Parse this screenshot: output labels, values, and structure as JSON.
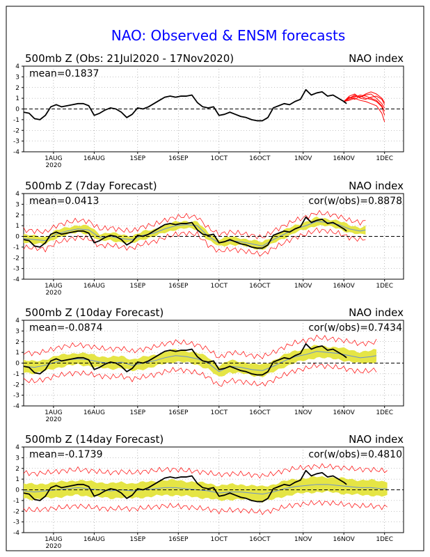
{
  "title": "NAO: Observed & ENSM forecasts",
  "colors": {
    "title": "#0000ff",
    "observed": "#000000",
    "forecast_members": "#ff0000",
    "spread_band": "#e5e545",
    "ensemble_mean": "#6a8fd0",
    "zero_line": "#000000",
    "grid": "#888888"
  },
  "x_axis": {
    "labels": [
      {
        "text": "1AUG",
        "day": 11
      },
      {
        "text": "16AUG",
        "day": 26
      },
      {
        "text": "1SEP",
        "day": 42
      },
      {
        "text": "16SEP",
        "day": 57
      },
      {
        "text": "1OCT",
        "day": 72
      },
      {
        "text": "16OCT",
        "day": 87
      },
      {
        "text": "1NOV",
        "day": 103
      },
      {
        "text": "16NOV",
        "day": 118
      },
      {
        "text": "1DEC",
        "day": 133
      }
    ],
    "year_label": "2020",
    "range": [
      0,
      140
    ]
  },
  "chart_data": [
    {
      "type": "line",
      "title": "500mb Z (Obs: 21Jul2020 - 17Nov2020)",
      "right_label": "NAO index",
      "mean_label": "mean=0.1837",
      "cor_label": "",
      "ylim": [
        -4,
        4
      ],
      "yticks": [
        4,
        3,
        2,
        1,
        0,
        -1,
        -2,
        -3,
        -4
      ],
      "observed": {
        "days": [
          0,
          2,
          4,
          6,
          8,
          10,
          12,
          14,
          16,
          18,
          20,
          22,
          24,
          26,
          28,
          30,
          32,
          34,
          36,
          38,
          40,
          42,
          44,
          46,
          48,
          50,
          52,
          54,
          56,
          58,
          60,
          62,
          64,
          66,
          68,
          70,
          72,
          74,
          76,
          78,
          80,
          82,
          84,
          86,
          88,
          90,
          92,
          94,
          96,
          98,
          100,
          102,
          104,
          106,
          108,
          110,
          112,
          114,
          116,
          118,
          119
        ],
        "values": [
          -0.3,
          -0.4,
          -0.9,
          -1.0,
          -0.6,
          0.2,
          0.4,
          0.2,
          0.3,
          0.4,
          0.5,
          0.5,
          0.3,
          -0.6,
          -0.4,
          -0.1,
          0.1,
          0.0,
          -0.3,
          -0.8,
          -0.5,
          0.1,
          0.0,
          0.2,
          0.5,
          0.8,
          1.1,
          1.2,
          1.1,
          1.2,
          1.2,
          1.3,
          0.6,
          0.2,
          0.1,
          0.2,
          -0.6,
          -0.5,
          -0.3,
          -0.5,
          -0.7,
          -0.8,
          -1.0,
          -1.1,
          -1.1,
          -0.8,
          0.1,
          0.3,
          0.5,
          0.4,
          0.7,
          0.9,
          1.8,
          1.3,
          1.5,
          1.6,
          1.2,
          1.3,
          1.0,
          0.7,
          0.5
        ]
      },
      "forecast_members": [
        {
          "days": [
            118,
            120,
            122,
            124,
            126,
            128,
            130,
            132,
            133
          ],
          "values": [
            0.7,
            1.0,
            1.3,
            1.1,
            1.4,
            1.6,
            1.4,
            1.0,
            0.6
          ]
        },
        {
          "days": [
            118,
            120,
            122,
            124,
            126,
            128,
            130,
            132,
            133
          ],
          "values": [
            0.7,
            0.9,
            1.1,
            1.3,
            1.2,
            1.0,
            0.8,
            0.3,
            -0.2
          ]
        },
        {
          "days": [
            118,
            120,
            122,
            124,
            126,
            128,
            130,
            132,
            133
          ],
          "values": [
            0.7,
            1.2,
            1.4,
            1.0,
            0.9,
            1.1,
            1.2,
            0.9,
            0.4
          ]
        },
        {
          "days": [
            118,
            120,
            122,
            124,
            126,
            128,
            130,
            132,
            133
          ],
          "values": [
            0.7,
            0.8,
            1.0,
            0.8,
            0.7,
            0.5,
            0.3,
            -0.4,
            -1.2
          ]
        },
        {
          "days": [
            118,
            120,
            122,
            124,
            126,
            128,
            130,
            132,
            133
          ],
          "values": [
            0.7,
            1.0,
            1.2,
            1.1,
            1.3,
            1.4,
            1.0,
            0.5,
            0.1
          ]
        },
        {
          "days": [
            118,
            120,
            122,
            124,
            126,
            128,
            130,
            132,
            133
          ],
          "values": [
            0.7,
            1.1,
            0.9,
            1.2,
            1.0,
            0.9,
            0.7,
            0.2,
            -0.6
          ]
        }
      ]
    },
    {
      "type": "line",
      "title": "500mb Z (7day Forecast)",
      "right_label": "NAO index",
      "mean_label": "mean=0.0413",
      "cor_label": "cor(w/obs)=0.8878",
      "ylim": [
        -4,
        4
      ],
      "yticks": [
        4,
        3,
        2,
        1,
        0,
        -1,
        -2,
        -3,
        -4
      ],
      "observed": {
        "days": [
          0,
          2,
          4,
          6,
          8,
          10,
          12,
          14,
          16,
          18,
          20,
          22,
          24,
          26,
          28,
          30,
          32,
          34,
          36,
          38,
          40,
          42,
          44,
          46,
          48,
          50,
          52,
          54,
          56,
          58,
          60,
          62,
          64,
          66,
          68,
          70,
          72,
          74,
          76,
          78,
          80,
          82,
          84,
          86,
          88,
          90,
          92,
          94,
          96,
          98,
          100,
          102,
          104,
          106,
          108,
          110,
          112,
          114,
          116,
          118,
          119
        ],
        "values": [
          -0.3,
          -0.4,
          -0.9,
          -1.0,
          -0.6,
          0.2,
          0.4,
          0.2,
          0.3,
          0.4,
          0.5,
          0.5,
          0.3,
          -0.6,
          -0.4,
          -0.1,
          0.1,
          0.0,
          -0.3,
          -0.8,
          -0.5,
          0.1,
          0.0,
          0.2,
          0.5,
          0.8,
          1.1,
          1.2,
          1.1,
          1.2,
          1.2,
          1.3,
          0.6,
          0.2,
          0.1,
          0.2,
          -0.6,
          -0.5,
          -0.3,
          -0.5,
          -0.7,
          -0.8,
          -1.0,
          -1.1,
          -1.1,
          -0.8,
          0.1,
          0.3,
          0.5,
          0.4,
          0.7,
          0.9,
          1.8,
          1.3,
          1.5,
          1.6,
          1.2,
          1.3,
          1.0,
          0.7,
          0.5
        ]
      },
      "ensemble_mean": {
        "days": [
          0,
          4,
          8,
          12,
          16,
          20,
          24,
          28,
          32,
          36,
          40,
          44,
          48,
          52,
          56,
          60,
          64,
          68,
          72,
          76,
          80,
          84,
          88,
          92,
          96,
          100,
          104,
          108,
          112,
          116,
          120,
          124,
          126
        ],
        "values": [
          -0.2,
          -0.3,
          -0.4,
          0.2,
          0.5,
          0.7,
          0.6,
          -0.1,
          0.0,
          -0.2,
          -0.3,
          0.1,
          0.3,
          0.7,
          1.0,
          1.1,
          1.0,
          0.0,
          -0.6,
          -0.4,
          -0.5,
          -0.7,
          -0.9,
          -0.3,
          0.2,
          0.7,
          1.0,
          1.4,
          1.3,
          1.1,
          0.7,
          0.5,
          0.6
        ]
      },
      "spread": 0.35,
      "member_spread": 0.8
    },
    {
      "type": "line",
      "title": "500mb Z (10day Forecast)",
      "right_label": "NAO index",
      "mean_label": "mean=-0.0874",
      "cor_label": "cor(w/obs)=0.7434",
      "ylim": [
        -4,
        4
      ],
      "yticks": [
        4,
        3,
        2,
        1,
        0,
        -1,
        -2,
        -3,
        -4
      ],
      "observed": {
        "days": [
          0,
          2,
          4,
          6,
          8,
          10,
          12,
          14,
          16,
          18,
          20,
          22,
          24,
          26,
          28,
          30,
          32,
          34,
          36,
          38,
          40,
          42,
          44,
          46,
          48,
          50,
          52,
          54,
          56,
          58,
          60,
          62,
          64,
          66,
          68,
          70,
          72,
          74,
          76,
          78,
          80,
          82,
          84,
          86,
          88,
          90,
          92,
          94,
          96,
          98,
          100,
          102,
          104,
          106,
          108,
          110,
          112,
          114,
          116,
          118,
          119
        ],
        "values": [
          -0.3,
          -0.4,
          -0.9,
          -1.0,
          -0.6,
          0.2,
          0.4,
          0.2,
          0.3,
          0.4,
          0.5,
          0.5,
          0.3,
          -0.6,
          -0.4,
          -0.1,
          0.1,
          0.0,
          -0.3,
          -0.8,
          -0.5,
          0.1,
          0.0,
          0.2,
          0.5,
          0.8,
          1.1,
          1.2,
          1.1,
          1.2,
          1.2,
          1.3,
          0.6,
          0.2,
          0.1,
          0.2,
          -0.6,
          -0.5,
          -0.3,
          -0.5,
          -0.7,
          -0.8,
          -1.0,
          -1.1,
          -1.1,
          -0.8,
          0.1,
          0.3,
          0.5,
          0.4,
          0.7,
          0.9,
          1.8,
          1.3,
          1.5,
          1.6,
          1.2,
          1.3,
          1.0,
          0.7,
          0.5
        ]
      },
      "ensemble_mean": {
        "days": [
          0,
          4,
          8,
          12,
          16,
          20,
          24,
          28,
          32,
          36,
          40,
          44,
          48,
          52,
          56,
          60,
          64,
          68,
          72,
          76,
          80,
          84,
          88,
          92,
          96,
          100,
          104,
          108,
          112,
          116,
          120,
          124,
          128,
          130
        ],
        "values": [
          -0.3,
          -0.4,
          -0.2,
          0.1,
          0.3,
          0.4,
          0.3,
          0.1,
          0.0,
          0.1,
          -0.2,
          0.0,
          0.2,
          0.5,
          0.7,
          0.6,
          0.4,
          0.0,
          -0.8,
          -0.3,
          -0.4,
          -0.6,
          -0.7,
          -0.3,
          0.2,
          0.6,
          0.8,
          1.1,
          1.0,
          0.9,
          0.7,
          0.5,
          0.6,
          0.7
        ]
      },
      "spread": 0.55,
      "member_spread": 1.3
    },
    {
      "type": "line",
      "title": "500mb Z (14day Forecast)",
      "right_label": "NAO index",
      "mean_label": "mean=-0.1739",
      "cor_label": "cor(w/obs)=0.4810",
      "ylim": [
        -4,
        4
      ],
      "yticks": [
        4,
        3,
        2,
        1,
        0,
        -1,
        -2,
        -3,
        -4
      ],
      "observed": {
        "days": [
          0,
          2,
          4,
          6,
          8,
          10,
          12,
          14,
          16,
          18,
          20,
          22,
          24,
          26,
          28,
          30,
          32,
          34,
          36,
          38,
          40,
          42,
          44,
          46,
          48,
          50,
          52,
          54,
          56,
          58,
          60,
          62,
          64,
          66,
          68,
          70,
          72,
          74,
          76,
          78,
          80,
          82,
          84,
          86,
          88,
          90,
          92,
          94,
          96,
          98,
          100,
          102,
          104,
          106,
          108,
          110,
          112,
          114,
          116,
          118,
          119
        ],
        "values": [
          -0.3,
          -0.4,
          -0.9,
          -1.0,
          -0.6,
          0.2,
          0.4,
          0.2,
          0.3,
          0.4,
          0.5,
          0.5,
          0.3,
          -0.6,
          -0.4,
          -0.1,
          0.1,
          0.0,
          -0.3,
          -0.8,
          -0.5,
          0.1,
          0.0,
          0.2,
          0.5,
          0.8,
          1.1,
          1.2,
          1.1,
          1.2,
          1.2,
          1.3,
          0.6,
          0.2,
          0.1,
          0.2,
          -0.6,
          -0.5,
          -0.3,
          -0.5,
          -0.7,
          -0.8,
          -1.0,
          -1.1,
          -1.1,
          -0.8,
          0.1,
          0.3,
          0.5,
          0.4,
          0.7,
          0.9,
          1.8,
          1.3,
          1.5,
          1.6,
          1.2,
          1.3,
          1.0,
          0.7,
          0.5
        ]
      },
      "ensemble_mean": {
        "days": [
          0,
          4,
          8,
          12,
          16,
          20,
          24,
          28,
          32,
          36,
          40,
          44,
          48,
          52,
          56,
          60,
          64,
          68,
          72,
          76,
          80,
          84,
          88,
          92,
          96,
          100,
          104,
          108,
          112,
          116,
          120,
          124,
          128,
          132,
          134
        ],
        "values": [
          -0.1,
          -0.2,
          -0.1,
          0.0,
          0.1,
          0.2,
          0.1,
          0.0,
          -0.1,
          0.0,
          -0.1,
          0.0,
          0.1,
          0.2,
          0.2,
          0.1,
          0.0,
          -0.1,
          -0.3,
          -0.2,
          -0.2,
          -0.3,
          -0.4,
          -0.2,
          0.1,
          0.3,
          0.4,
          0.5,
          0.5,
          0.4,
          0.3,
          0.2,
          0.2,
          0.1,
          0.1
        ]
      },
      "spread": 0.7,
      "member_spread": 1.7
    }
  ]
}
